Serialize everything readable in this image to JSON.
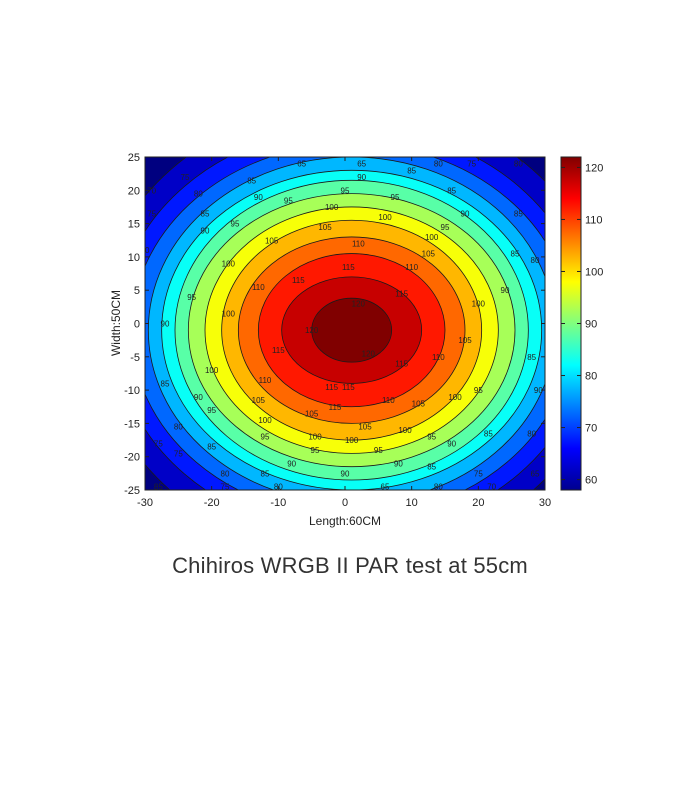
{
  "caption": "Chihiros WRGB II PAR test at 55cm",
  "chart_data": {
    "type": "contour",
    "title": "",
    "xlabel": "Length:60CM",
    "ylabel": "Width:50CM",
    "xlim": [
      -30,
      30
    ],
    "ylim": [
      -25,
      25
    ],
    "x_ticks": [
      -30,
      -20,
      -10,
      0,
      10,
      20,
      30
    ],
    "y_ticks": [
      -25,
      -20,
      -15,
      -10,
      -5,
      0,
      5,
      10,
      15,
      20,
      25
    ],
    "colorbar": {
      "min": 58,
      "max": 122,
      "ticks": [
        60,
        70,
        80,
        90,
        100,
        110,
        120
      ],
      "colormap": "jet"
    },
    "center": [
      1,
      -1
    ],
    "levels": [
      {
        "value": 60,
        "rx": 38.5,
        "ry": 34.0
      },
      {
        "value": 65,
        "rx": 35.5,
        "ry": 30.5
      },
      {
        "value": 70,
        "rx": 33.0,
        "ry": 28.0
      },
      {
        "value": 75,
        "rx": 30.5,
        "ry": 26.0
      },
      {
        "value": 80,
        "rx": 28.5,
        "ry": 24.0
      },
      {
        "value": 85,
        "rx": 26.5,
        "ry": 22.5
      },
      {
        "value": 90,
        "rx": 24.5,
        "ry": 20.5
      },
      {
        "value": 95,
        "rx": 22.0,
        "ry": 18.5
      },
      {
        "value": 100,
        "rx": 19.5,
        "ry": 16.5
      },
      {
        "value": 105,
        "rx": 17.0,
        "ry": 14.0
      },
      {
        "value": 110,
        "rx": 14.0,
        "ry": 11.5
      },
      {
        "value": 115,
        "rx": 10.5,
        "ry": 8.0
      },
      {
        "value": 120,
        "rx": 6.0,
        "ry": 4.8
      }
    ],
    "contour_labels": [
      {
        "value": "65",
        "x": -6.5,
        "y": 24
      },
      {
        "value": "65",
        "x": 2.5,
        "y": 24
      },
      {
        "value": "80",
        "x": 14,
        "y": 24
      },
      {
        "value": "75",
        "x": 19,
        "y": 24
      },
      {
        "value": "80",
        "x": 26,
        "y": 24
      },
      {
        "value": "75",
        "x": -24,
        "y": 22
      },
      {
        "value": "70",
        "x": -29,
        "y": 20
      },
      {
        "value": "80",
        "x": -22,
        "y": 19.5
      },
      {
        "value": "75",
        "x": -29,
        "y": 16.5
      },
      {
        "value": "85",
        "x": -21,
        "y": 16.5
      },
      {
        "value": "85",
        "x": -14,
        "y": 21.5
      },
      {
        "value": "90",
        "x": -13,
        "y": 19
      },
      {
        "value": "90",
        "x": 2.5,
        "y": 22
      },
      {
        "value": "85",
        "x": 10,
        "y": 23
      },
      {
        "value": "95",
        "x": 0,
        "y": 20
      },
      {
        "value": "95",
        "x": 7.5,
        "y": 19
      },
      {
        "value": "85",
        "x": 16,
        "y": 20
      },
      {
        "value": "90",
        "x": 18,
        "y": 16.5
      },
      {
        "value": "95",
        "x": -8.5,
        "y": 18.5
      },
      {
        "value": "100",
        "x": -2,
        "y": 17.5
      },
      {
        "value": "100",
        "x": 6,
        "y": 16
      },
      {
        "value": "95",
        "x": -16.5,
        "y": 15
      },
      {
        "value": "105",
        "x": -3,
        "y": 14.5
      },
      {
        "value": "90",
        "x": -21,
        "y": 14
      },
      {
        "value": "95",
        "x": 15,
        "y": 14.5
      },
      {
        "value": "100",
        "x": 13,
        "y": 13
      },
      {
        "value": "85",
        "x": 26,
        "y": 16.5
      },
      {
        "value": "105",
        "x": -11,
        "y": 12.5
      },
      {
        "value": "110",
        "x": 2,
        "y": 12
      },
      {
        "value": "105",
        "x": 12.5,
        "y": 10.5
      },
      {
        "value": "90",
        "x": -30,
        "y": 11
      },
      {
        "value": "100",
        "x": -17.5,
        "y": 9
      },
      {
        "value": "115",
        "x": 0.5,
        "y": 8.5
      },
      {
        "value": "110",
        "x": 10,
        "y": 8.5
      },
      {
        "value": "85",
        "x": 25.5,
        "y": 10.5
      },
      {
        "value": "80",
        "x": 28.5,
        "y": 9.5
      },
      {
        "value": "95",
        "x": -23,
        "y": 4
      },
      {
        "value": "110",
        "x": -13,
        "y": 5.5
      },
      {
        "value": "115",
        "x": -7,
        "y": 6.5
      },
      {
        "value": "115",
        "x": 8.5,
        "y": 4.5
      },
      {
        "value": "100",
        "x": 20,
        "y": 3
      },
      {
        "value": "90",
        "x": 24,
        "y": 5
      },
      {
        "value": "90",
        "x": -27,
        "y": 0
      },
      {
        "value": "100",
        "x": -17.5,
        "y": 1.5
      },
      {
        "value": "120",
        "x": 2,
        "y": 3
      },
      {
        "value": "120",
        "x": -5,
        "y": -1
      },
      {
        "value": "105",
        "x": 18,
        "y": -2.5
      },
      {
        "value": "85",
        "x": 28,
        "y": -5
      },
      {
        "value": "115",
        "x": -10,
        "y": -4
      },
      {
        "value": "120",
        "x": 3.5,
        "y": -4.5
      },
      {
        "value": "110",
        "x": 14,
        "y": -5
      },
      {
        "value": "115",
        "x": 8.5,
        "y": -6
      },
      {
        "value": "100",
        "x": -20,
        "y": -7
      },
      {
        "value": "110",
        "x": -12,
        "y": -8.5
      },
      {
        "value": "115",
        "x": -2,
        "y": -9.5
      },
      {
        "value": "115",
        "x": 0.5,
        "y": -9.5
      },
      {
        "value": "85",
        "x": -27,
        "y": -9
      },
      {
        "value": "90",
        "x": -22,
        "y": -11
      },
      {
        "value": "105",
        "x": -13,
        "y": -11.5
      },
      {
        "value": "110",
        "x": 6.5,
        "y": -11.5
      },
      {
        "value": "115",
        "x": -1.5,
        "y": -12.5
      },
      {
        "value": "105",
        "x": 11,
        "y": -12
      },
      {
        "value": "100",
        "x": 16.5,
        "y": -11
      },
      {
        "value": "95",
        "x": 20,
        "y": -10
      },
      {
        "value": "90",
        "x": 29,
        "y": -10
      },
      {
        "value": "95",
        "x": -20,
        "y": -13
      },
      {
        "value": "80",
        "x": -25,
        "y": -15.5
      },
      {
        "value": "100",
        "x": -12,
        "y": -14.5
      },
      {
        "value": "105",
        "x": -5,
        "y": -13.5
      },
      {
        "value": "105",
        "x": 3,
        "y": -15.5
      },
      {
        "value": "100",
        "x": 9,
        "y": -16
      },
      {
        "value": "95",
        "x": -12,
        "y": -17
      },
      {
        "value": "100",
        "x": -4.5,
        "y": -17
      },
      {
        "value": "100",
        "x": 1,
        "y": -17.5
      },
      {
        "value": "95",
        "x": 13,
        "y": -17
      },
      {
        "value": "90",
        "x": 16,
        "y": -18
      },
      {
        "value": "85",
        "x": 21.5,
        "y": -16.5
      },
      {
        "value": "80",
        "x": 28,
        "y": -16.5
      },
      {
        "value": "75",
        "x": -28,
        "y": -18
      },
      {
        "value": "85",
        "x": -20,
        "y": -18.5
      },
      {
        "value": "75",
        "x": -25,
        "y": -19.5
      },
      {
        "value": "95",
        "x": -4.5,
        "y": -19
      },
      {
        "value": "95",
        "x": 5,
        "y": -19
      },
      {
        "value": "90",
        "x": -8,
        "y": -21
      },
      {
        "value": "90",
        "x": 8,
        "y": -21
      },
      {
        "value": "85",
        "x": 13,
        "y": -21.5
      },
      {
        "value": "80",
        "x": -18,
        "y": -22.5
      },
      {
        "value": "75",
        "x": 20,
        "y": -22.5
      },
      {
        "value": "85",
        "x": -12,
        "y": -22.5
      },
      {
        "value": "90",
        "x": 0,
        "y": -22.5
      },
      {
        "value": "65",
        "x": 28.5,
        "y": -22.5
      },
      {
        "value": "85",
        "x": -28,
        "y": -24.5
      },
      {
        "value": "75",
        "x": -18,
        "y": -24.5
      },
      {
        "value": "80",
        "x": -10,
        "y": -24.5
      },
      {
        "value": "65",
        "x": 6,
        "y": -24.5
      },
      {
        "value": "80",
        "x": 14,
        "y": -24.5
      },
      {
        "value": "70",
        "x": 22,
        "y": -24.5
      }
    ]
  }
}
